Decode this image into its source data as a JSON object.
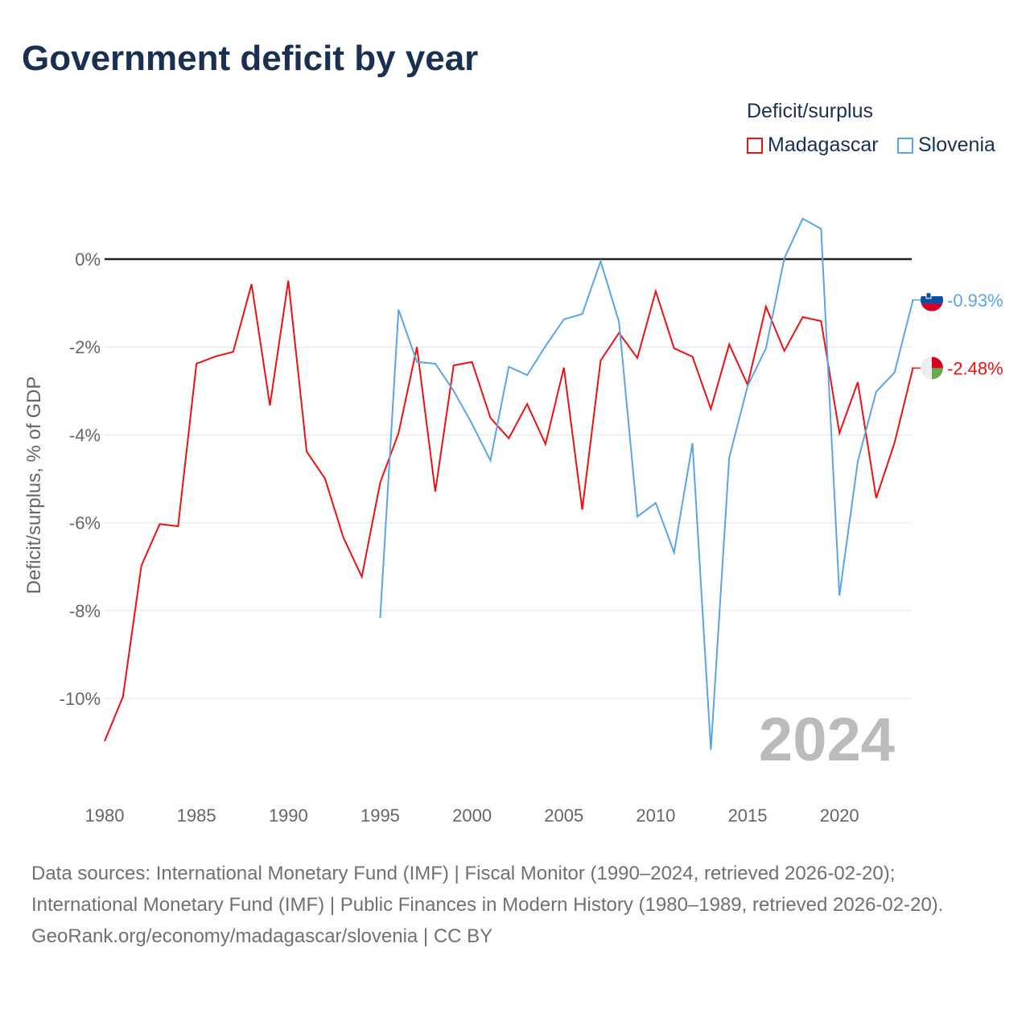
{
  "title": "Government deficit by year",
  "legend": {
    "title": "Deficit/surplus",
    "items": [
      {
        "name": "Madagascar",
        "color": "#ee1111"
      },
      {
        "name": "Slovenia",
        "color": "#5aa5ea"
      }
    ]
  },
  "footer": {
    "sources": "Data sources: International Monetary Fund (IMF) | Fiscal Monitor (1990–2024, retrieved 2026-02-20); International Monetary Fund (IMF) | Public Finances in Modern History (1980–1989, retrieved 2026-02-20).",
    "link": "GeoRank.org/economy/madagascar/slovenia | CC BY"
  },
  "chart_data": {
    "type": "line",
    "title": "Government deficit by year",
    "xlabel": "",
    "ylabel": "Deficit/surplus, % of GDP",
    "year_label": "2024",
    "xlim": [
      1980,
      2024
    ],
    "ylim": [
      -11.6,
      1.0
    ],
    "xticks": [
      1980,
      1985,
      1990,
      1995,
      2000,
      2005,
      2010,
      2015,
      2020
    ],
    "yticks": [
      0,
      -2,
      -4,
      -6,
      -8,
      -10
    ],
    "ytick_labels": [
      "0%",
      "-2%",
      "-4%",
      "-6%",
      "-8%",
      "-10%"
    ],
    "series": [
      {
        "name": "Madagascar",
        "color": "#ee1111",
        "end_label": "-2.48%",
        "start_year": 1980,
        "values": [
          -10.97,
          -9.96,
          -6.98,
          -6.03,
          -6.08,
          -2.38,
          -2.22,
          -2.11,
          -0.57,
          -3.33,
          -0.49,
          -4.38,
          -5.0,
          -6.34,
          -7.23,
          -5.09,
          -3.96,
          -2.0,
          -5.29,
          -2.42,
          -2.34,
          -3.61,
          -4.08,
          -3.3,
          -4.21,
          -2.47,
          -5.7,
          -2.31,
          -1.68,
          -2.25,
          -0.73,
          -2.03,
          -2.22,
          -3.41,
          -1.94,
          -2.86,
          -1.08,
          -2.09,
          -1.32,
          -1.41,
          -3.96,
          -2.8,
          -5.44,
          -4.18,
          -2.48
        ]
      },
      {
        "name": "Slovenia",
        "color": "#5aa5ea",
        "end_label": "-0.93%",
        "start_year": 1995,
        "values": [
          -8.17,
          -1.15,
          -2.34,
          -2.38,
          -3.0,
          -3.75,
          -4.58,
          -2.45,
          -2.64,
          -1.98,
          -1.37,
          -1.25,
          -0.05,
          -1.43,
          -5.86,
          -5.55,
          -6.68,
          -4.19,
          -11.17,
          -4.52,
          -2.89,
          -2.03,
          0.02,
          0.92,
          0.69,
          -7.66,
          -4.6,
          -3.02,
          -2.58,
          -0.93
        ]
      }
    ]
  }
}
